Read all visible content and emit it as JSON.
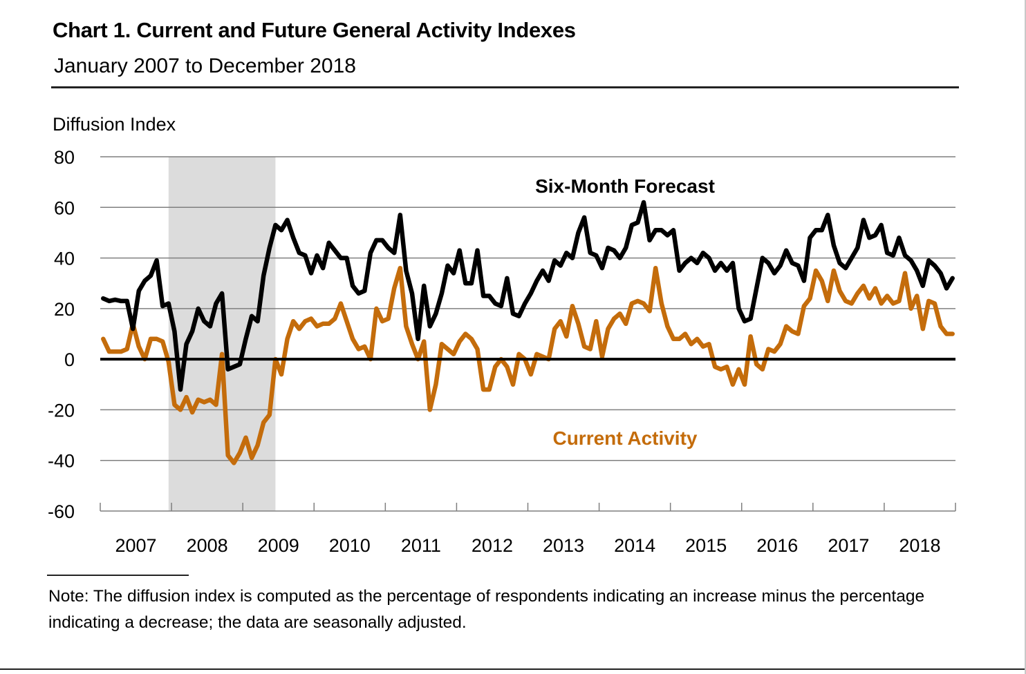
{
  "header": {
    "title": "Chart 1. Current and Future General Activity Indexes",
    "subtitle": "January 2007 to December 2018"
  },
  "footer": {
    "note": "Note: The diffusion index is computed as the percentage of respondents indicating an increase minus the percentage indicating a decrease; the data are seasonally adjusted."
  },
  "chart_data": {
    "type": "line",
    "title": "Chart 1. Current and Future General Activity Indexes",
    "subtitle": "January 2007 to December 2018",
    "xlabel": "",
    "ylabel": "Diffusion Index",
    "ylim": [
      -60,
      80
    ],
    "yticks": [
      80,
      60,
      40,
      20,
      0,
      -20,
      -40,
      -60
    ],
    "ytick_labels": [
      "80",
      "60",
      "40",
      "20",
      "0",
      "-20",
      "-40",
      "-60"
    ],
    "x_start": "2007-01",
    "x_end": "2018-12",
    "x_frequency": "monthly",
    "xtick_labels": [
      "2007",
      "2008",
      "2009",
      "2010",
      "2011",
      "2012",
      "2013",
      "2014",
      "2015",
      "2016",
      "2017",
      "2018"
    ],
    "grid": "horizontal",
    "zero_line": true,
    "shaded_regions": [
      {
        "label": "recession",
        "start": "2007-12",
        "end": "2009-06",
        "color": "#dcdcdc"
      }
    ],
    "series": [
      {
        "name": "Six-Month Forecast",
        "color": "#000000",
        "label_position": "top-center",
        "values": [
          24,
          23,
          23.5,
          23,
          23,
          12,
          27,
          31,
          33,
          39,
          21,
          22,
          11,
          -12,
          6,
          11,
          20,
          15,
          13,
          22,
          26,
          -4,
          -3,
          -2,
          8,
          17,
          15,
          33,
          44,
          53,
          51,
          55,
          48,
          42,
          41,
          34,
          41,
          36,
          46,
          43,
          40,
          40,
          29,
          26,
          27,
          42,
          47,
          47,
          44,
          42,
          57,
          35,
          26,
          8,
          29,
          13,
          18,
          26,
          37,
          34,
          43,
          30,
          30,
          43,
          25,
          25,
          22,
          21,
          32,
          18,
          17,
          22,
          26,
          31,
          35,
          31,
          39,
          37,
          42,
          40,
          50,
          56,
          42,
          41,
          36,
          44,
          43,
          40,
          44,
          53,
          54,
          62,
          47,
          51,
          51,
          49,
          51,
          35,
          38,
          40,
          38,
          42,
          40,
          35,
          38,
          35,
          38,
          20,
          15,
          16,
          28,
          40,
          38,
          34,
          37,
          43,
          38,
          37,
          31,
          48,
          51,
          51,
          57,
          45,
          38,
          36,
          40,
          44,
          55,
          48,
          49,
          53,
          42,
          41,
          48,
          41,
          39,
          35,
          29,
          39,
          37,
          34,
          28,
          32
        ]
      },
      {
        "name": "Current Activity",
        "color": "#c46c0b",
        "label_position": "bottom-center",
        "values": [
          8,
          3,
          3,
          3,
          4,
          14,
          5,
          0,
          8,
          8,
          7,
          -1,
          -18,
          -20,
          -15,
          -21,
          -16,
          -17,
          -16,
          -18,
          2,
          -38,
          -41,
          -37,
          -31,
          -39,
          -34,
          -25,
          -22,
          0,
          -6,
          8,
          15,
          12,
          15,
          16,
          13,
          14,
          14,
          16,
          22,
          15,
          8,
          4,
          5,
          0,
          20,
          15,
          16,
          28,
          36,
          13,
          6,
          0,
          7,
          -20,
          -10,
          6,
          4,
          2,
          7,
          10,
          8,
          4,
          -12,
          -12,
          -3,
          0,
          -3,
          -10,
          2,
          0,
          -6,
          2,
          1,
          0,
          12,
          15,
          9,
          21,
          14,
          5,
          4,
          15,
          1,
          12,
          16,
          18,
          14,
          22,
          23,
          22,
          19,
          36,
          22,
          13,
          8,
          8,
          10,
          6,
          8,
          5,
          6,
          -3,
          -4,
          -3,
          -10,
          -4,
          -10,
          9,
          -2,
          -4,
          4,
          3,
          6,
          13,
          11,
          10,
          21,
          24,
          35,
          31,
          23,
          35,
          27,
          23,
          22,
          26,
          29,
          24,
          28,
          22,
          25,
          22,
          23,
          34,
          20,
          25,
          12,
          23,
          22,
          13,
          10,
          10
        ]
      }
    ]
  }
}
